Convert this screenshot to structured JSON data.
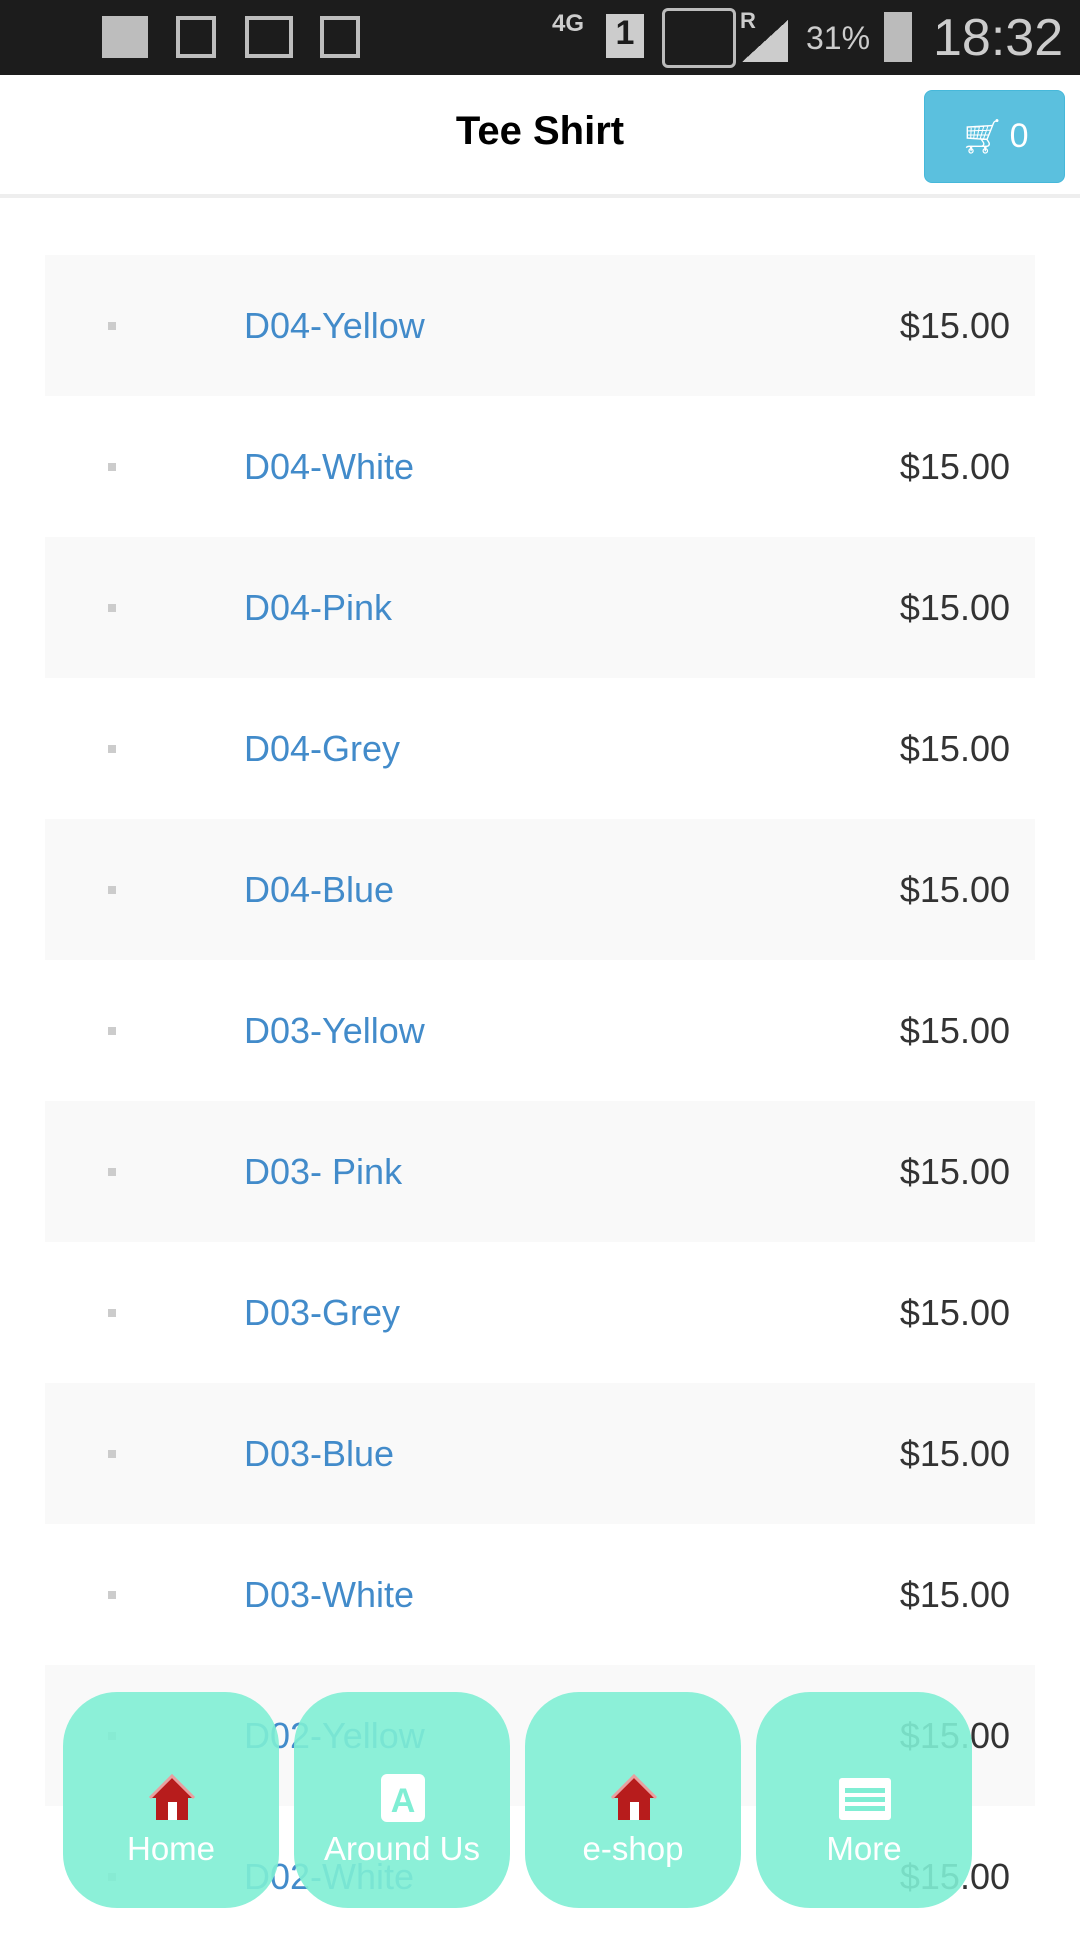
{
  "status_bar": {
    "network": "4G",
    "sim": "1",
    "roaming": "R",
    "battery": "31%",
    "time": "18:32"
  },
  "header": {
    "title": "Tee Shirt",
    "cart_count": "0"
  },
  "products": [
    {
      "name": "D04-Yellow",
      "price": "$15.00"
    },
    {
      "name": "D04-White",
      "price": "$15.00"
    },
    {
      "name": "D04-Pink",
      "price": "$15.00"
    },
    {
      "name": "D04-Grey",
      "price": "$15.00"
    },
    {
      "name": "D04-Blue",
      "price": "$15.00"
    },
    {
      "name": "D03-Yellow",
      "price": "$15.00"
    },
    {
      "name": "D03- Pink",
      "price": "$15.00"
    },
    {
      "name": "D03-Grey",
      "price": "$15.00"
    },
    {
      "name": "D03-Blue",
      "price": "$15.00"
    },
    {
      "name": "D03-White",
      "price": "$15.00"
    },
    {
      "name": "D02-Yellow",
      "price": "$15.00"
    },
    {
      "name": "D02-White",
      "price": "$15.00"
    }
  ],
  "nav": [
    {
      "label": "Home",
      "icon": "house-icon"
    },
    {
      "label": "Around Us",
      "icon": "a-letter-icon"
    },
    {
      "label": "e-shop",
      "icon": "house-icon"
    },
    {
      "label": "More",
      "icon": "list-icon"
    }
  ],
  "colors": {
    "accent": "#5bc0de",
    "link": "#428bca",
    "nav": "#8ef0da"
  }
}
